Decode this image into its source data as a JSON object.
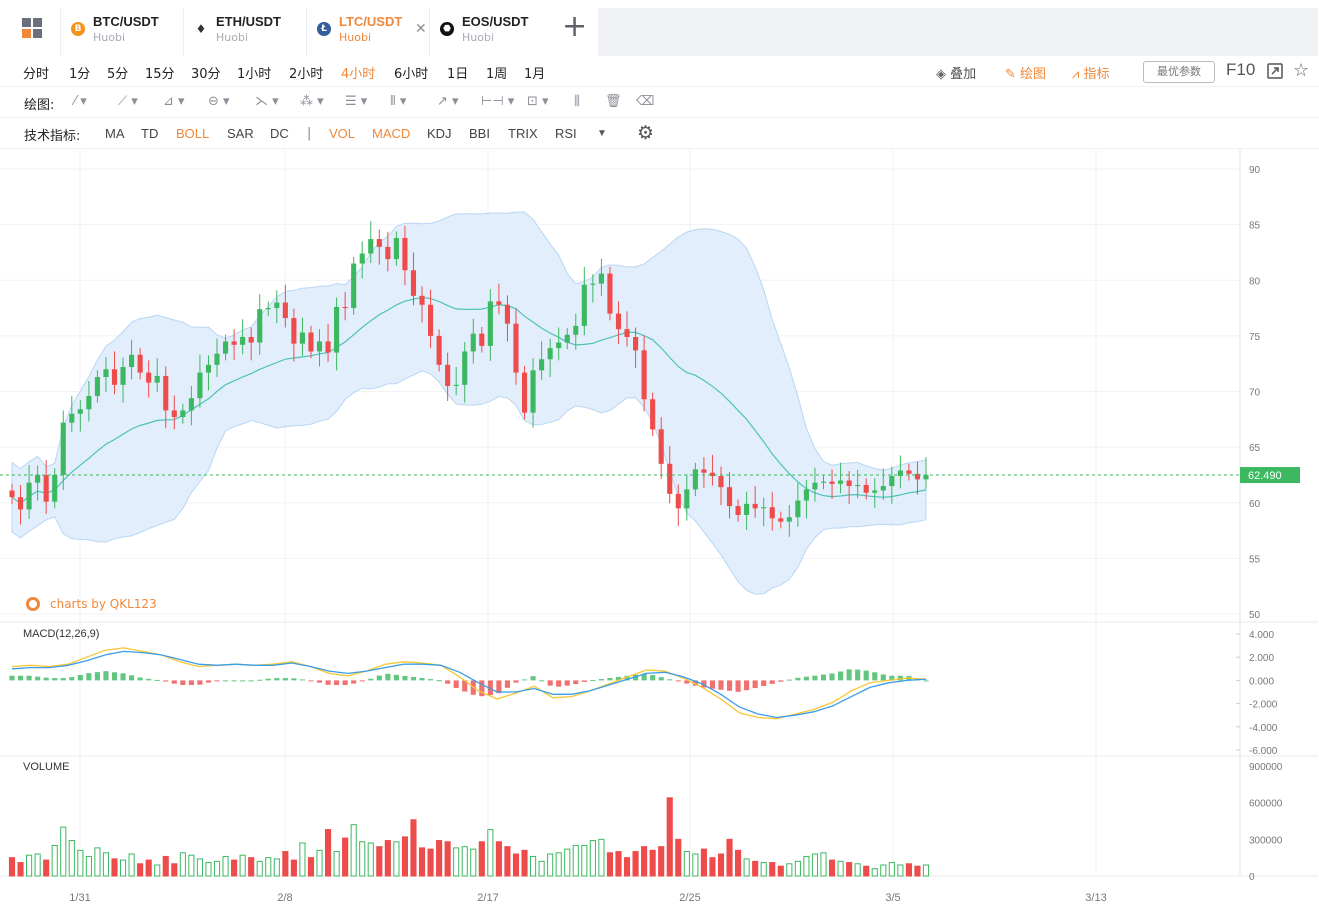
{
  "tabs": [
    {
      "pair": "BTC/USDT",
      "exchange": "Huobi",
      "coin_color": "#f7931a",
      "coin_glyph": "B"
    },
    {
      "pair": "ETH/USDT",
      "exchange": "Huobi",
      "coin_color": "#333333",
      "coin_glyph": "♦"
    },
    {
      "pair": "LTC/USDT",
      "exchange": "Huobi",
      "coin_color": "#345d9d",
      "coin_glyph": "Ł",
      "active": true
    },
    {
      "pair": "EOS/USDT",
      "exchange": "Huobi",
      "coin_color": "#111111",
      "coin_glyph": "⬣"
    }
  ],
  "toolbar": {
    "intervals": [
      "分时",
      "1分",
      "5分",
      "15分",
      "30分",
      "1小时",
      "2小时",
      "4小时",
      "6小时",
      "1日",
      "1周",
      "1月"
    ],
    "active_interval": "4小时",
    "overlay_label": "叠加",
    "draw_label": "绘图",
    "indicator_label": "指标",
    "params_label": "最优参数",
    "f10_label": "F10"
  },
  "draw_row": {
    "label": "绘图:"
  },
  "indicator_row": {
    "label": "技术指标:",
    "items": [
      "MA",
      "TD",
      "BOLL",
      "SAR",
      "DC",
      "VOL",
      "MACD",
      "KDJ",
      "BBI",
      "TRIX",
      "RSI"
    ],
    "active": [
      "BOLL",
      "VOL",
      "MACD"
    ]
  },
  "watermark": "charts by QKL123",
  "macd_label": "MACD(12,26,9)",
  "volume_label": "VOLUME",
  "colors": {
    "accent": "#f0883a",
    "up": "#3cb860",
    "down": "#ee4b4b",
    "mid": "#4cc3b6",
    "band": "#dbeafb"
  },
  "chart_data": {
    "type": "candlestick",
    "last_price_label": "62.490",
    "last_price": 62.49,
    "price_axis": {
      "ticks": [
        90,
        85,
        80,
        75,
        70,
        65,
        60,
        55,
        50
      ],
      "ylim": [
        50,
        90
      ]
    },
    "macd_axis": {
      "ticks": [
        "4.000",
        "2.000",
        "0.000",
        "-2.000",
        "-4.000",
        "-6.000"
      ],
      "ylim": [
        -6,
        4
      ]
    },
    "volume_axis": {
      "ticks": [
        "900000",
        "600000",
        "300000",
        "0"
      ],
      "ylim": [
        0,
        900000
      ]
    },
    "x_labels": [
      "1/31",
      "2/8",
      "2/17",
      "2/25",
      "3/5",
      "3/13"
    ],
    "close": [
      60.5,
      59.4,
      61.8,
      62.5,
      60.1,
      62.5,
      67.2,
      68.0,
      68.4,
      69.6,
      71.3,
      72.0,
      70.6,
      72.2,
      73.3,
      71.7,
      70.8,
      71.4,
      68.3,
      67.7,
      68.3,
      69.4,
      71.7,
      72.4,
      73.4,
      74.5,
      74.2,
      74.9,
      74.4,
      77.4,
      77.5,
      78.0,
      76.6,
      74.3,
      75.3,
      73.6,
      74.5,
      73.5,
      77.6,
      77.5,
      81.5,
      82.4,
      83.7,
      83.0,
      81.9,
      83.8,
      80.9,
      78.6,
      77.8,
      75.0,
      72.4,
      70.5,
      70.6,
      73.6,
      75.2,
      74.1,
      78.1,
      77.8,
      76.1,
      71.7,
      68.1,
      71.9,
      72.9,
      73.9,
      74.4,
      75.1,
      75.9,
      79.6,
      79.7,
      80.6,
      77.0,
      75.6,
      74.9,
      73.7,
      69.3,
      66.6,
      63.5,
      60.8,
      59.5,
      61.2,
      63.0,
      62.7,
      62.4,
      61.4,
      59.7,
      58.9,
      59.9,
      59.5,
      59.6,
      58.6,
      58.3,
      58.7,
      60.2,
      61.2,
      61.8,
      61.9,
      61.7,
      62.0,
      61.5,
      61.6,
      60.9,
      61.1,
      61.5,
      62.4,
      62.9,
      62.6,
      62.1,
      62.5
    ],
    "macd": {
      "dif": [
        1.2,
        1.3,
        1.2,
        1.4,
        2.0,
        2.6,
        2.8,
        2.5,
        2.2,
        1.6,
        1.2,
        1.3,
        1.4,
        1.3,
        1.4,
        1.6,
        1.2,
        0.6,
        0.4,
        0.8,
        1.4,
        1.6,
        1.5,
        1.3,
        0.3,
        -0.9,
        -1.6,
        -1.1,
        -0.5,
        -1.5,
        -1.4,
        -0.9,
        -0.3,
        0.3,
        0.9,
        0.8,
        0.2,
        -0.6,
        -1.6,
        -2.8,
        -3.2,
        -3.3,
        -2.9,
        -2.5,
        -1.9,
        -0.9,
        -0.2,
        0.0,
        0.2,
        0.1
      ],
      "dea": [
        1.0,
        1.1,
        1.1,
        1.3,
        1.7,
        2.2,
        2.5,
        2.4,
        2.2,
        1.8,
        1.4,
        1.3,
        1.4,
        1.3,
        1.3,
        1.5,
        1.2,
        0.8,
        0.6,
        0.8,
        1.1,
        1.4,
        1.4,
        1.3,
        0.7,
        -0.2,
        -1.0,
        -1.0,
        -0.7,
        -1.2,
        -1.2,
        -0.9,
        -0.4,
        0.1,
        0.6,
        0.7,
        0.3,
        -0.3,
        -1.2,
        -2.3,
        -2.9,
        -3.2,
        -3.0,
        -2.7,
        -2.2,
        -1.4,
        -0.6,
        -0.2,
        0.0,
        0.1
      ]
    },
    "volume": [
      150000,
      110000,
      170000,
      180000,
      130000,
      250000,
      400000,
      290000,
      210000,
      160000,
      230000,
      190000,
      140000,
      130000,
      180000,
      100000,
      130000,
      90000,
      160000,
      100000,
      190000,
      170000,
      140000,
      110000,
      120000,
      160000,
      130000,
      170000,
      150000,
      120000,
      150000,
      140000,
      200000,
      130000,
      270000,
      150000,
      210000,
      380000,
      200000,
      310000,
      420000,
      280000,
      270000,
      240000,
      290000,
      280000,
      320000,
      460000,
      230000,
      220000,
      290000,
      280000,
      230000,
      240000,
      220000,
      280000,
      380000,
      280000,
      240000,
      180000,
      210000,
      160000,
      120000,
      180000,
      190000,
      220000,
      250000,
      250000,
      290000,
      300000,
      190000,
      200000,
      150000,
      200000,
      240000,
      210000,
      240000,
      640000,
      300000,
      200000,
      180000,
      220000,
      150000,
      180000,
      300000,
      210000,
      140000,
      120000,
      110000,
      110000,
      80000,
      100000,
      120000,
      160000,
      180000,
      190000,
      130000,
      120000,
      110000,
      100000,
      80000,
      60000,
      90000,
      110000,
      90000,
      100000,
      80000,
      90000
    ]
  }
}
